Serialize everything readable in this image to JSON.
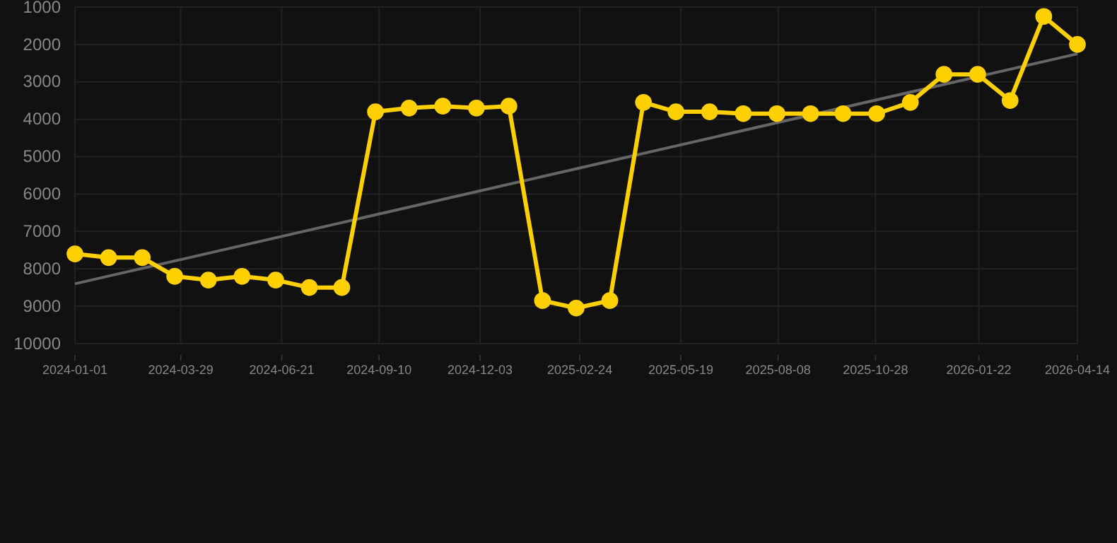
{
  "chart_data": {
    "type": "line",
    "x": [
      "2024-01-01",
      "2024-01-29",
      "2024-02-26",
      "2024-03-24",
      "2024-04-21",
      "2024-05-19",
      "2024-06-16",
      "2024-07-14",
      "2024-08-10",
      "2024-09-07",
      "2024-10-05",
      "2024-11-02",
      "2024-11-30",
      "2024-12-27",
      "2025-01-24",
      "2025-02-21",
      "2025-03-21",
      "2025-04-18",
      "2025-05-15",
      "2025-06-12",
      "2025-07-10",
      "2025-08-07",
      "2025-09-04",
      "2025-10-01",
      "2025-10-29",
      "2025-11-26",
      "2025-12-24",
      "2026-01-21",
      "2026-02-17",
      "2026-03-17",
      "2026-04-14"
    ],
    "series": [
      {
        "color": "#ffd000",
        "marker": "circle",
        "values": [
          7600,
          7700,
          7700,
          8200,
          8300,
          8200,
          8300,
          8500,
          8500,
          3800,
          3700,
          3650,
          3700,
          3650,
          8850,
          9050,
          8850,
          3550,
          3800,
          3800,
          3850,
          3850,
          3850,
          3850,
          3850,
          3550,
          2800,
          2800,
          3500,
          1250,
          2000
        ]
      },
      {
        "color": "#666666",
        "marker": "none",
        "x": [
          "2024-01-01",
          "2026-04-14"
        ],
        "values": [
          8400,
          2250
        ]
      }
    ],
    "xlim": [
      "2024-01-01",
      "2026-04-14"
    ],
    "xticks": [
      {
        "value": "2024-01-01",
        "label": "2024-01-01"
      },
      {
        "value": "2024-03-29",
        "label": "2024-03-29"
      },
      {
        "value": "2024-06-21",
        "label": "2024-06-21"
      },
      {
        "value": "2024-09-10",
        "label": "2024-09-10"
      },
      {
        "value": "2024-12-03",
        "label": "2024-12-03"
      },
      {
        "value": "2025-02-24",
        "label": "2025-02-24"
      },
      {
        "value": "2025-05-19",
        "label": "2025-05-19"
      },
      {
        "value": "2025-08-08",
        "label": "2025-08-08"
      },
      {
        "value": "2025-10-28",
        "label": "2025-10-28"
      },
      {
        "value": "2026-01-22",
        "label": "2026-01-22"
      },
      {
        "value": "2026-04-14",
        "label": "2026-04-14"
      }
    ],
    "ylim": [
      10000,
      1000
    ],
    "yticks": [
      1000,
      2000,
      3000,
      4000,
      5000,
      6000,
      7000,
      8000,
      9000,
      10000
    ],
    "grid": true
  }
}
